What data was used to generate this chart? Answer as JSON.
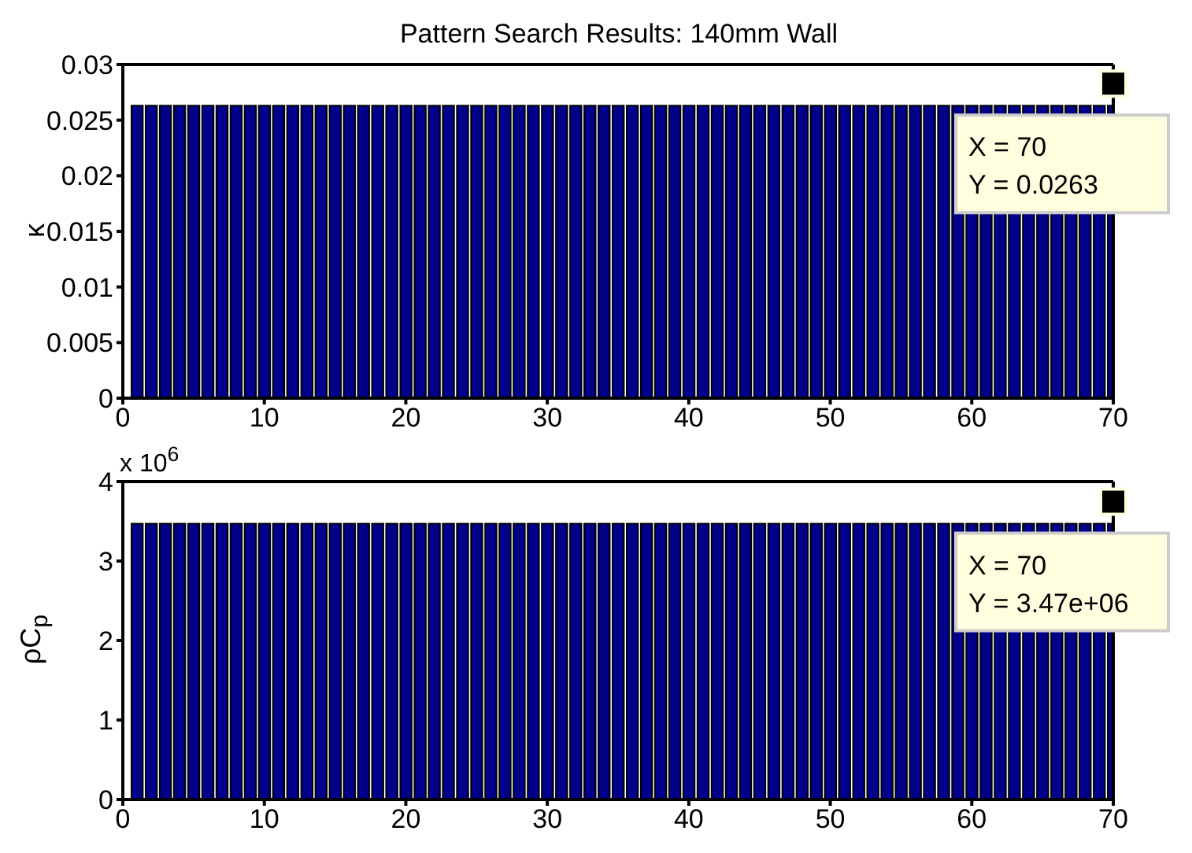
{
  "chart_data": [
    {
      "type": "bar",
      "title": "Pattern Search Results: 140mm Wall",
      "ylabel": "κ",
      "x": [
        1,
        2,
        3,
        4,
        5,
        6,
        7,
        8,
        9,
        10,
        11,
        12,
        13,
        14,
        15,
        16,
        17,
        18,
        19,
        20,
        21,
        22,
        23,
        24,
        25,
        26,
        27,
        28,
        29,
        30,
        31,
        32,
        33,
        34,
        35,
        36,
        37,
        38,
        39,
        40,
        41,
        42,
        43,
        44,
        45,
        46,
        47,
        48,
        49,
        50,
        51,
        52,
        53,
        54,
        55,
        56,
        57,
        58,
        59,
        60,
        61,
        62,
        63,
        64,
        65,
        66,
        67,
        68,
        69,
        70
      ],
      "values": [
        0.0263,
        0.0263,
        0.0263,
        0.0263,
        0.0263,
        0.0263,
        0.0263,
        0.0263,
        0.0263,
        0.0263,
        0.0263,
        0.0263,
        0.0263,
        0.0263,
        0.0263,
        0.0263,
        0.0263,
        0.0263,
        0.0263,
        0.0263,
        0.0263,
        0.0263,
        0.0263,
        0.0263,
        0.0263,
        0.0263,
        0.0263,
        0.0263,
        0.0263,
        0.0263,
        0.0263,
        0.0263,
        0.0263,
        0.0263,
        0.0263,
        0.0263,
        0.0263,
        0.0263,
        0.0263,
        0.0263,
        0.0263,
        0.0263,
        0.0263,
        0.0263,
        0.0263,
        0.0263,
        0.0263,
        0.0263,
        0.0263,
        0.0263,
        0.0263,
        0.0263,
        0.0263,
        0.0263,
        0.0263,
        0.0263,
        0.0263,
        0.0263,
        0.0263,
        0.0263,
        0.0263,
        0.0263,
        0.0263,
        0.0263,
        0.0263,
        0.0263,
        0.0263,
        0.0263,
        0.0263,
        0.0263
      ],
      "color": "#00008b",
      "xlim": [
        0,
        70
      ],
      "xticks": [
        0,
        10,
        20,
        30,
        40,
        50,
        60,
        70
      ],
      "ylim": [
        0,
        0.03
      ],
      "yticks": [
        0,
        0.005,
        0.01,
        0.015,
        0.02,
        0.025,
        0.03
      ],
      "annotations": [
        "X = 70",
        "Y = 0.0263"
      ]
    },
    {
      "type": "bar",
      "ylabel": "ρC$_{p}$",
      "x": [
        1,
        2,
        3,
        4,
        5,
        6,
        7,
        8,
        9,
        10,
        11,
        12,
        13,
        14,
        15,
        16,
        17,
        18,
        19,
        20,
        21,
        22,
        23,
        24,
        25,
        26,
        27,
        28,
        29,
        30,
        31,
        32,
        33,
        34,
        35,
        36,
        37,
        38,
        39,
        40,
        41,
        42,
        43,
        44,
        45,
        46,
        47,
        48,
        49,
        50,
        51,
        52,
        53,
        54,
        55,
        56,
        57,
        58,
        59,
        60,
        61,
        62,
        63,
        64,
        65,
        66,
        67,
        68,
        69,
        70
      ],
      "values": [
        3.47,
        3.47,
        3.47,
        3.47,
        3.47,
        3.47,
        3.47,
        3.47,
        3.47,
        3.47,
        3.47,
        3.47,
        3.47,
        3.47,
        3.47,
        3.47,
        3.47,
        3.47,
        3.47,
        3.47,
        3.47,
        3.47,
        3.47,
        3.47,
        3.47,
        3.47,
        3.47,
        3.47,
        3.47,
        3.47,
        3.47,
        3.47,
        3.47,
        3.47,
        3.47,
        3.47,
        3.47,
        3.47,
        3.47,
        3.47,
        3.47,
        3.47,
        3.47,
        3.47,
        3.47,
        3.47,
        3.47,
        3.47,
        3.47,
        3.47,
        3.47,
        3.47,
        3.47,
        3.47,
        3.47,
        3.47,
        3.47,
        3.47,
        3.47,
        3.47,
        3.47,
        3.47,
        3.47,
        3.47,
        3.47,
        3.47,
        3.47,
        3.47,
        3.47,
        3.47
      ],
      "color": "#00008b",
      "xlim": [
        0,
        70
      ],
      "xticks": [
        0,
        10,
        20,
        30,
        40,
        50,
        60,
        70
      ],
      "ylim": [
        0,
        4
      ],
      "yticks": [
        0,
        1,
        2,
        3,
        4
      ],
      "annotations": [
        "x 10$^{6}$",
        "X = 70",
        "Y = 3.47e+06"
      ]
    }
  ]
}
